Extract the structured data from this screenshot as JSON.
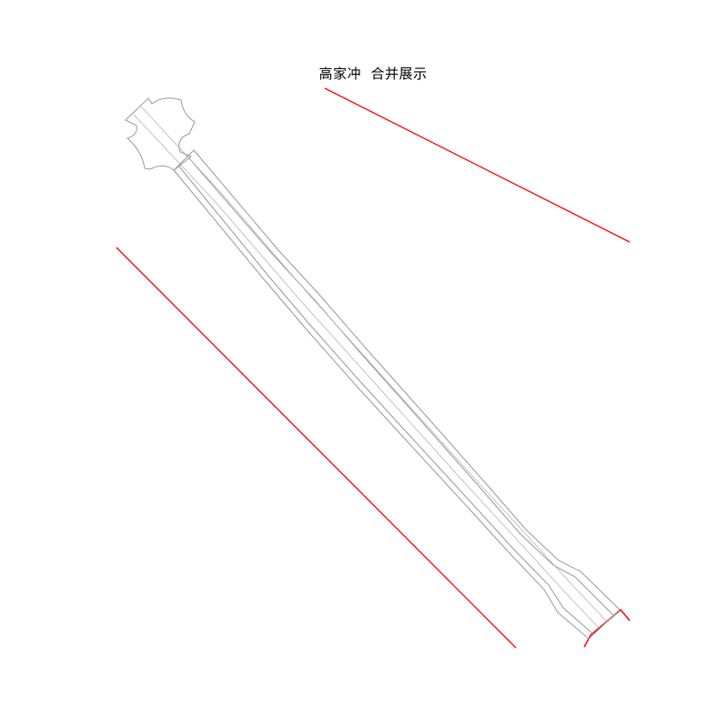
{
  "title": "高家冲  合并展示",
  "colors": {
    "background": "#ffffff",
    "boundary_line": "#ff0000",
    "road_outline": "#999999",
    "road_centerline": "#b5b5b5",
    "text": "#000000"
  },
  "drawing": {
    "boundary_line_count": 3,
    "road_count": 1
  }
}
